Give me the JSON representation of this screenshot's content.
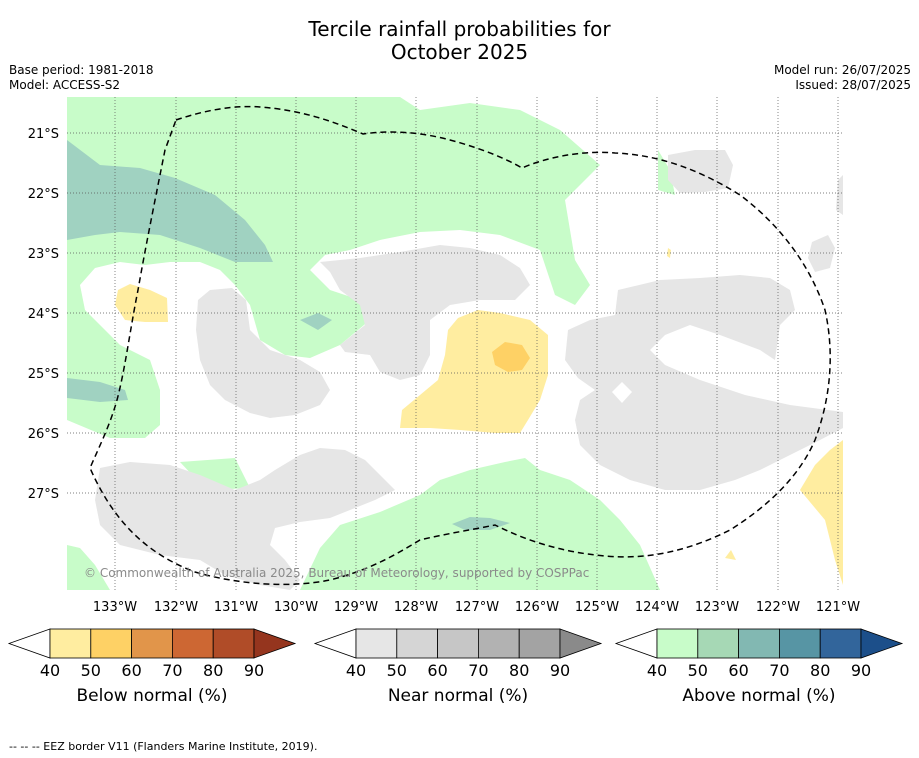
{
  "title_line1": "Tercile rainfall probabilities for",
  "title_line2": "October 2025",
  "meta_left": [
    "Base period: 1981-2018",
    "Model: ACCESS-S2"
  ],
  "meta_right": [
    "Model run: 26/07/2025",
    "Issued: 28/07/2025"
  ],
  "copyright": "© Commonwealth of Australia 2025, Bureau of Meteorology, supported by COSPPac",
  "lat_labels": [
    "21°S",
    "22°S",
    "23°S",
    "24°S",
    "25°S",
    "26°S",
    "27°S"
  ],
  "lon_labels": [
    "133°W",
    "132°W",
    "131°W",
    "130°W",
    "129°W",
    "128°W",
    "127°W",
    "126°W",
    "125°W",
    "124°W",
    "123°W",
    "122°W",
    "121°W"
  ],
  "colorbars": [
    {
      "name": "below",
      "label": "Below normal (%)",
      "ticks": [
        "40",
        "50",
        "60",
        "70",
        "80",
        "90"
      ],
      "colors": [
        "#ffeda0",
        "#fed165",
        "#e1954a",
        "#cd6733",
        "#b04c28"
      ],
      "arrow": "#95351e"
    },
    {
      "name": "near",
      "label": "Near normal (%)",
      "ticks": [
        "40",
        "50",
        "60",
        "70",
        "80",
        "90"
      ],
      "colors": [
        "#e6e6e6",
        "#d5d5d5",
        "#c6c6c6",
        "#b2b2b2",
        "#a3a3a3"
      ],
      "arrow": "#8a8a8a"
    },
    {
      "name": "above",
      "label": "Above normal (%)",
      "ticks": [
        "40",
        "50",
        "60",
        "70",
        "80",
        "90"
      ],
      "colors": [
        "#c8fcc9",
        "#a6d8b5",
        "#82b8b2",
        "#5795a4",
        "#32659b"
      ],
      "arrow": "#1c4f8a"
    }
  ],
  "footer": "--  --  -- EEZ border V11 (Flanders Marine Institute, 2019)."
}
